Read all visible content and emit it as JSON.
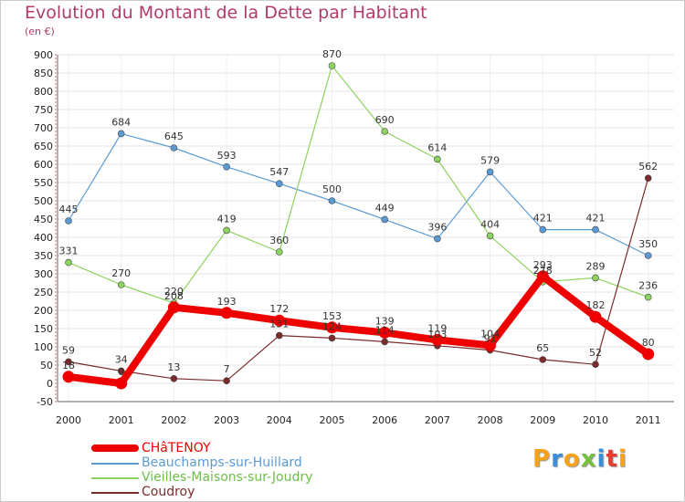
{
  "title": "Evolution du Montant de la Dette par Habitant",
  "subtitle": "(en €)",
  "brand": {
    "text": "Proxiti",
    "letter_colors": [
      "#f7a21b",
      "#3b8fd6",
      "#f7a21b",
      "#76c043",
      "#3b8fd6",
      "#e63d2f",
      "#f7a21b"
    ]
  },
  "chart_data": {
    "type": "line",
    "x": [
      "2000",
      "2001",
      "2002",
      "2003",
      "2004",
      "2005",
      "2006",
      "2007",
      "2008",
      "2009",
      "2010",
      "2011"
    ],
    "ylim": [
      -50,
      900
    ],
    "yticks": [
      -50,
      0,
      50,
      100,
      150,
      200,
      250,
      300,
      350,
      400,
      450,
      500,
      550,
      600,
      650,
      700,
      750,
      800,
      850,
      900
    ],
    "grid": true,
    "legend_position": "bottom-left",
    "series": [
      {
        "name": "Beauchamps-sur-Huillard",
        "color": "#5b9bd5",
        "width": 1.2,
        "marker": 3.5,
        "values": [
          445,
          684,
          645,
          593,
          547,
          500,
          449,
          396,
          579,
          421,
          421,
          350
        ],
        "labels": [
          "445",
          "684",
          "645",
          "593",
          "547",
          "500",
          "449",
          "396",
          "579",
          "421",
          "421",
          "350"
        ]
      },
      {
        "name": "Vieilles-Maisons-sur-Joudry",
        "color": "#8dd35f",
        "width": 1.2,
        "marker": 3.5,
        "values": [
          331,
          270,
          220,
          419,
          360,
          870,
          690,
          614,
          404,
          278,
          289,
          236
        ],
        "labels": [
          "331",
          "270",
          "220",
          "419",
          "360",
          "870",
          "690",
          "614",
          "404",
          "278",
          "289",
          "236"
        ]
      },
      {
        "name": "Coudroy",
        "color": "#7b2b2b",
        "width": 1.2,
        "marker": 3.5,
        "values": [
          59,
          34,
          13,
          7,
          131,
          124,
          114,
          103,
          91,
          65,
          52,
          562
        ],
        "labels": [
          "59",
          "34",
          "13",
          "7",
          "131",
          "124",
          "114",
          "103",
          "91",
          "65",
          "52",
          "562"
        ]
      },
      {
        "name": "CHâTENOY",
        "color": "#ee0000",
        "width": 8,
        "marker": 6.5,
        "values": [
          18,
          0,
          208,
          193,
          172,
          153,
          139,
          119,
          104,
          293,
          182,
          80
        ],
        "labels": [
          "18",
          "0",
          "208",
          "193",
          "172",
          "153",
          "139",
          "119",
          "104",
          "293",
          "182",
          "80"
        ]
      }
    ],
    "legend": [
      {
        "name": "CHâTENOY",
        "color": "#ee0000",
        "thick": true
      },
      {
        "name": "Beauchamps-sur-Huillard",
        "color": "#5b9bd5",
        "thick": false
      },
      {
        "name": "Vieilles-Maisons-sur-Joudry",
        "color": "#8dd35f",
        "thick": false
      },
      {
        "name": "Coudroy",
        "color": "#7b2b2b",
        "thick": false
      }
    ]
  }
}
